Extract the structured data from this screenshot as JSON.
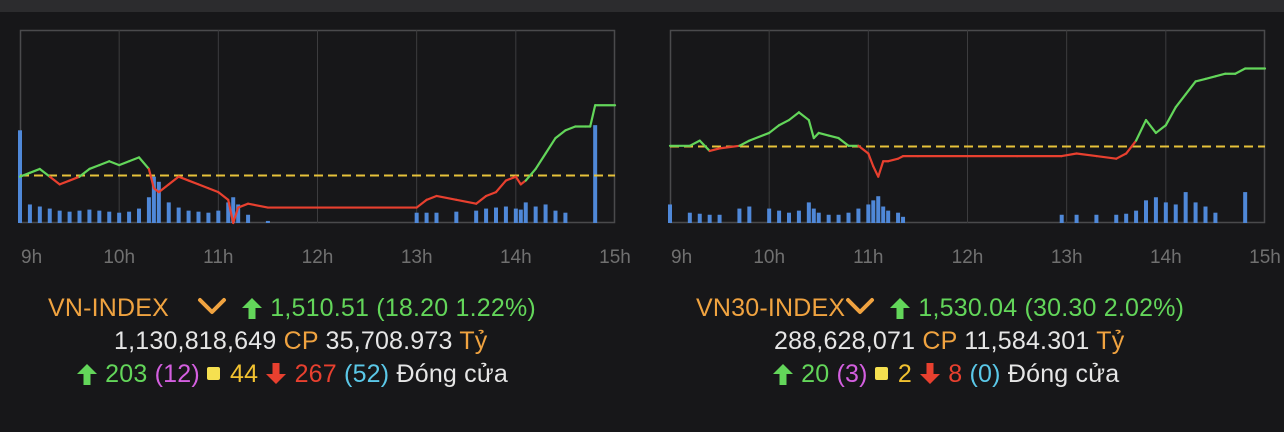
{
  "colors": {
    "up": "#63d65a",
    "down": "#e8402f",
    "reference": "#e6c23a",
    "volume": "#4f88d8",
    "index_name": "#f0a340",
    "ceiling": "#d45fe0",
    "floor": "#5bc8e8",
    "unchanged": "#f2c230"
  },
  "panels": [
    {
      "name": "VN-INDEX",
      "value": "1,510.51",
      "change_text": "(18.20 1.22%)",
      "volume": "1,130,818,649",
      "cp_label": "CP",
      "turnover": "35,708.973",
      "unit": "Tỷ",
      "advances": "203",
      "ceiling": "(12)",
      "unchanged": "44",
      "declines": "267",
      "floor": "(52)",
      "status": "Đóng cửa",
      "icons": [
        "chevron-down-icon",
        "arrow-up-icon",
        "arrow-down-icon"
      ]
    },
    {
      "name": "VN30-INDEX",
      "value": "1,530.04",
      "change_text": "(30.30 2.02%)",
      "volume": "288,628,071",
      "cp_label": "CP",
      "turnover": "11,584.301",
      "unit": "Tỷ",
      "advances": "20",
      "ceiling": "(3)",
      "unchanged": "2",
      "declines": "8",
      "floor": "(0)",
      "status": "Đóng cửa",
      "icons": [
        "chevron-down-icon",
        "arrow-up-icon",
        "arrow-down-icon"
      ]
    }
  ],
  "chart_data": [
    {
      "type": "line",
      "title": "VN-INDEX",
      "x_ticks": [
        "9h",
        "10h",
        "11h",
        "12h",
        "13h",
        "14h",
        "15h"
      ],
      "xlim": [
        9,
        15
      ],
      "ylim": [
        1480,
        1530
      ],
      "grid": true,
      "reference": 1492.31,
      "series": [
        {
          "x": [
            9.0,
            9.1,
            9.2,
            9.3,
            9.4,
            9.5,
            9.6,
            9.7,
            9.8,
            9.9,
            10.0,
            10.1,
            10.2,
            10.3,
            10.35,
            10.4,
            10.5,
            10.6,
            10.7,
            10.8,
            10.9,
            11.0,
            11.1,
            11.15,
            11.2,
            11.3,
            11.5,
            13.0,
            13.1,
            13.2,
            13.4,
            13.6,
            13.7,
            13.8,
            13.9,
            14.0,
            14.05,
            14.1,
            14.2,
            14.3,
            14.4,
            14.5,
            14.6,
            14.7,
            14.75,
            14.8,
            15.0
          ],
          "y": [
            1492,
            1493,
            1494,
            1492,
            1490,
            1491,
            1492,
            1494,
            1495,
            1496,
            1495,
            1496,
            1497,
            1494,
            1489,
            1488,
            1490,
            1492,
            1491,
            1490,
            1489,
            1488,
            1486,
            1480,
            1484,
            1485,
            1484,
            1484,
            1486,
            1487,
            1486,
            1485,
            1487,
            1488,
            1491,
            1492,
            1490,
            1491,
            1494,
            1498,
            1502,
            1504,
            1505,
            1505,
            1505,
            1510.51,
            1510.51
          ]
        }
      ],
      "volume": {
        "x": [
          9.0,
          9.1,
          9.2,
          9.3,
          9.4,
          9.5,
          9.6,
          9.7,
          9.8,
          9.9,
          10.0,
          10.1,
          10.2,
          10.3,
          10.35,
          10.4,
          10.5,
          10.6,
          10.7,
          10.8,
          10.9,
          11.0,
          11.1,
          11.15,
          11.2,
          11.3,
          11.5,
          13.0,
          13.1,
          13.2,
          13.4,
          13.6,
          13.7,
          13.8,
          13.9,
          14.0,
          14.05,
          14.1,
          14.2,
          14.3,
          14.4,
          14.5,
          14.6,
          14.7,
          14.75,
          14.8
        ],
        "values": [
          90,
          18,
          16,
          14,
          12,
          11,
          12,
          13,
          12,
          11,
          10,
          11,
          14,
          25,
          45,
          40,
          20,
          15,
          12,
          11,
          10,
          12,
          20,
          25,
          18,
          8,
          2,
          10,
          10,
          10,
          11,
          12,
          14,
          15,
          16,
          14,
          13,
          20,
          16,
          18,
          12,
          10,
          0,
          0,
          0,
          95
        ]
      }
    },
    {
      "type": "line",
      "title": "VN30-INDEX",
      "x_ticks": [
        "9h",
        "10h",
        "11h",
        "12h",
        "13h",
        "14h",
        "15h"
      ],
      "xlim": [
        9,
        15
      ],
      "ylim": [
        1470,
        1545
      ],
      "grid": true,
      "reference": 1499.74,
      "series": [
        {
          "x": [
            9.0,
            9.2,
            9.3,
            9.4,
            9.5,
            9.7,
            9.8,
            10.0,
            10.1,
            10.2,
            10.3,
            10.4,
            10.45,
            10.5,
            10.6,
            10.7,
            10.8,
            10.9,
            11.0,
            11.05,
            11.1,
            11.15,
            11.2,
            11.3,
            11.35,
            11.5,
            12.0,
            12.5,
            12.95,
            13.1,
            13.3,
            13.5,
            13.6,
            13.7,
            13.8,
            13.9,
            14.0,
            14.1,
            14.2,
            14.3,
            14.4,
            14.5,
            14.6,
            14.7,
            14.8,
            15.0
          ],
          "y": [
            1500,
            1500,
            1502,
            1498,
            1499,
            1500,
            1502,
            1505,
            1508,
            1510,
            1513,
            1510,
            1503,
            1505,
            1504,
            1503,
            1500,
            1500,
            1497,
            1492,
            1488,
            1494,
            1494,
            1495,
            1496,
            1496,
            1496,
            1496,
            1496,
            1497,
            1496,
            1495,
            1497,
            1502,
            1510,
            1505,
            1508,
            1515,
            1520,
            1525,
            1526,
            1527,
            1528,
            1528,
            1530.04,
            1530.04
          ]
        }
      ],
      "volume": {
        "x": [
          9.0,
          9.2,
          9.3,
          9.4,
          9.5,
          9.7,
          9.8,
          10.0,
          10.1,
          10.2,
          10.3,
          10.4,
          10.45,
          10.5,
          10.6,
          10.7,
          10.8,
          10.9,
          11.0,
          11.05,
          11.1,
          11.15,
          11.2,
          11.3,
          11.35,
          11.5,
          12.0,
          12.5,
          12.95,
          13.1,
          13.3,
          13.5,
          13.6,
          13.7,
          13.8,
          13.9,
          14.0,
          14.1,
          14.2,
          14.3,
          14.4,
          14.5,
          14.6,
          14.7,
          14.8
        ],
        "values": [
          18,
          10,
          9,
          8,
          8,
          14,
          16,
          14,
          12,
          10,
          12,
          20,
          14,
          10,
          8,
          8,
          10,
          14,
          18,
          22,
          26,
          16,
          12,
          10,
          6,
          0,
          0,
          0,
          8,
          8,
          8,
          8,
          9,
          12,
          22,
          25,
          20,
          18,
          30,
          20,
          16,
          10,
          0,
          0,
          30
        ]
      }
    }
  ]
}
